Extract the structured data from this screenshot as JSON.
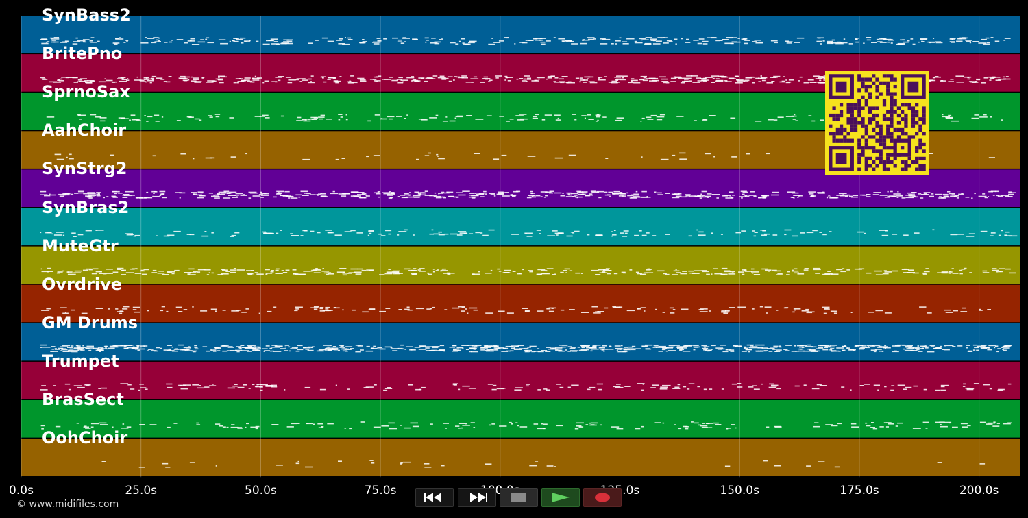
{
  "tracks": [
    {
      "name": "SynBass2",
      "color": "#005f96"
    },
    {
      "name": "BritePno",
      "color": "#960038"
    },
    {
      "name": "SprnoSax",
      "color": "#00962c"
    },
    {
      "name": "AahChoir",
      "color": "#966200"
    },
    {
      "name": "SynStrg2",
      "color": "#610096"
    },
    {
      "name": "SynBras2",
      "color": "#00969b"
    },
    {
      "name": "MuteGtr",
      "color": "#969600"
    },
    {
      "name": "Ovrdrive",
      "color": "#962400"
    },
    {
      "name": "GM Drums",
      "color": "#005f96"
    },
    {
      "name": "Trumpet",
      "color": "#960038"
    },
    {
      "name": "BrasSect",
      "color": "#00962c"
    },
    {
      "name": "OohChoir",
      "color": "#966200"
    }
  ],
  "timeline": {
    "max_seconds": 208.5,
    "ticks": [
      {
        "value": 0,
        "label": "0.0s"
      },
      {
        "value": 25,
        "label": "25.0s"
      },
      {
        "value": 50,
        "label": "50.0s"
      },
      {
        "value": 75,
        "label": "75.0s"
      },
      {
        "value": 100,
        "label": "100.0s"
      },
      {
        "value": 125,
        "label": "125.0s"
      },
      {
        "value": 150,
        "label": "150.0s"
      },
      {
        "value": 175,
        "label": "175.0s"
      },
      {
        "value": 200,
        "label": "200.0s"
      }
    ]
  },
  "transport": {
    "buttons": [
      {
        "name": "rewind-button",
        "icon": "rewind-icon"
      },
      {
        "name": "fast-forward-button",
        "icon": "fast-forward-icon"
      },
      {
        "name": "stop-button",
        "icon": "stop-icon"
      },
      {
        "name": "play-button",
        "icon": "play-icon"
      },
      {
        "name": "record-button",
        "icon": "record-icon"
      }
    ]
  },
  "footer": {
    "copyright": "© www.midifiles.com"
  },
  "qr": {
    "icon": "qr-code-icon",
    "fg": "#4a0f5c",
    "bg": "#f6e21e"
  }
}
